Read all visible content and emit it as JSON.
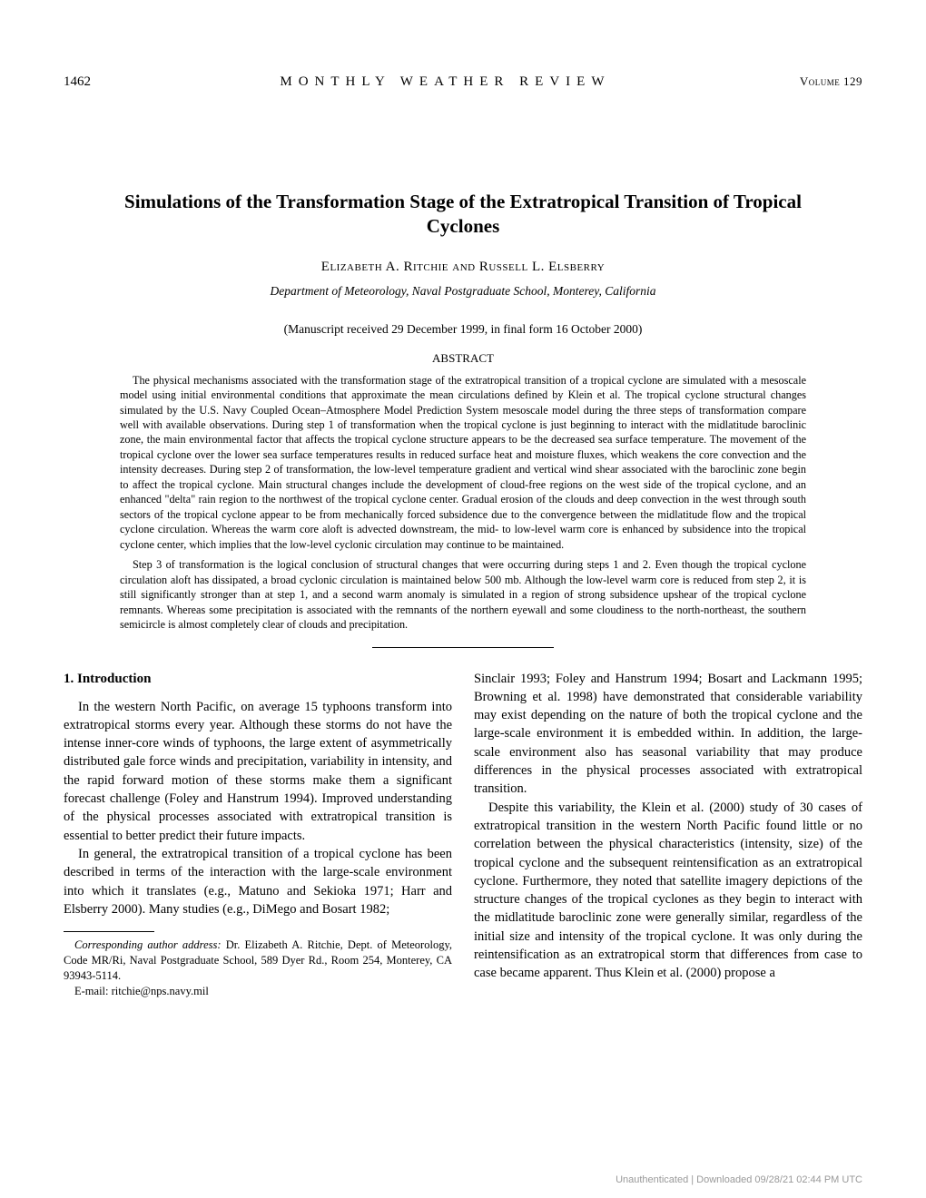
{
  "header": {
    "page_number": "1462",
    "journal": "MONTHLY WEATHER REVIEW",
    "volume": "Volume 129"
  },
  "title": "Simulations of the Transformation Stage of the Extratropical Transition of Tropical Cyclones",
  "authors": "Elizabeth A. Ritchie and Russell L. Elsberry",
  "affiliation": "Department of Meteorology, Naval Postgraduate School, Monterey, California",
  "manuscript": "(Manuscript received 29 December 1999, in final form 16 October 2000)",
  "abstract_label": "ABSTRACT",
  "abstract_p1": "The physical mechanisms associated with the transformation stage of the extratropical transition of a tropical cyclone are simulated with a mesoscale model using initial environmental conditions that approximate the mean circulations defined by Klein et al. The tropical cyclone structural changes simulated by the U.S. Navy Coupled Ocean–Atmosphere Model Prediction System mesoscale model during the three steps of transformation compare well with available observations. During step 1 of transformation when the tropical cyclone is just beginning to interact with the midlatitude baroclinic zone, the main environmental factor that affects the tropical cyclone structure appears to be the decreased sea surface temperature. The movement of the tropical cyclone over the lower sea surface temperatures results in reduced surface heat and moisture fluxes, which weakens the core convection and the intensity decreases. During step 2 of transformation, the low-level temperature gradient and vertical wind shear associated with the baroclinic zone begin to affect the tropical cyclone. Main structural changes include the development of cloud-free regions on the west side of the tropical cyclone, and an enhanced \"delta\" rain region to the northwest of the tropical cyclone center. Gradual erosion of the clouds and deep convection in the west through south sectors of the tropical cyclone appear to be from mechanically forced subsidence due to the convergence between the midlatitude flow and the tropical cyclone circulation. Whereas the warm core aloft is advected downstream, the mid- to low-level warm core is enhanced by subsidence into the tropical cyclone center, which implies that the low-level cyclonic circulation may continue to be maintained.",
  "abstract_p2": "Step 3 of transformation is the logical conclusion of structural changes that were occurring during steps 1 and 2. Even though the tropical cyclone circulation aloft has dissipated, a broad cyclonic circulation is maintained below 500 mb. Although the low-level warm core is reduced from step 2, it is still significantly stronger than at step 1, and a second warm anomaly is simulated in a region of strong subsidence upshear of the tropical cyclone remnants. Whereas some precipitation is associated with the remnants of the northern eyewall and some cloudiness to the north-northeast, the southern semicircle is almost completely clear of clouds and precipitation.",
  "section1_header": "1. Introduction",
  "col1_p1": "In the western North Pacific, on average 15 typhoons transform into extratropical storms every year. Although these storms do not have the intense inner-core winds of typhoons, the large extent of asymmetrically distributed gale force winds and precipitation, variability in intensity, and the rapid forward motion of these storms make them a significant forecast challenge (Foley and Hanstrum 1994). Improved understanding of the physical processes associated with extratropical transition is essential to better predict their future impacts.",
  "col1_p2": "In general, the extratropical transition of a tropical cyclone has been described in terms of the interaction with the large-scale environment into which it translates (e.g., Matuno and Sekioka 1971; Harr and Elsberry 2000). Many studies (e.g., DiMego and Bosart 1982;",
  "col2_p1": "Sinclair 1993; Foley and Hanstrum 1994; Bosart and Lackmann 1995; Browning et al. 1998) have demonstrated that considerable variability may exist depending on the nature of both the tropical cyclone and the large-scale environment it is embedded within. In addition, the large-scale environment also has seasonal variability that may produce differences in the physical processes associated with extratropical transition.",
  "col2_p2": "Despite this variability, the Klein et al. (2000) study of 30 cases of extratropical transition in the western North Pacific found little or no correlation between the physical characteristics (intensity, size) of the tropical cyclone and the subsequent reintensification as an extratropical cyclone. Furthermore, they noted that satellite imagery depictions of the structure changes of the tropical cyclones as they begin to interact with the midlatitude baroclinic zone were generally similar, regardless of the initial size and intensity of the tropical cyclone. It was only during the reintensification as an extratropical storm that differences from case to case became apparent. Thus Klein et al. (2000) propose a",
  "footnote_label": "Corresponding author address:",
  "footnote_body": " Dr. Elizabeth A. Ritchie, Dept. of Meteorology, Code MR/Ri, Naval Postgraduate School, 589 Dyer Rd., Room 254, Monterey, CA 93943-5114.",
  "footnote_email": "E-mail: ritchie@nps.navy.mil",
  "watermark": "Unauthenticated | Downloaded 09/28/21 02:44 PM UTC"
}
